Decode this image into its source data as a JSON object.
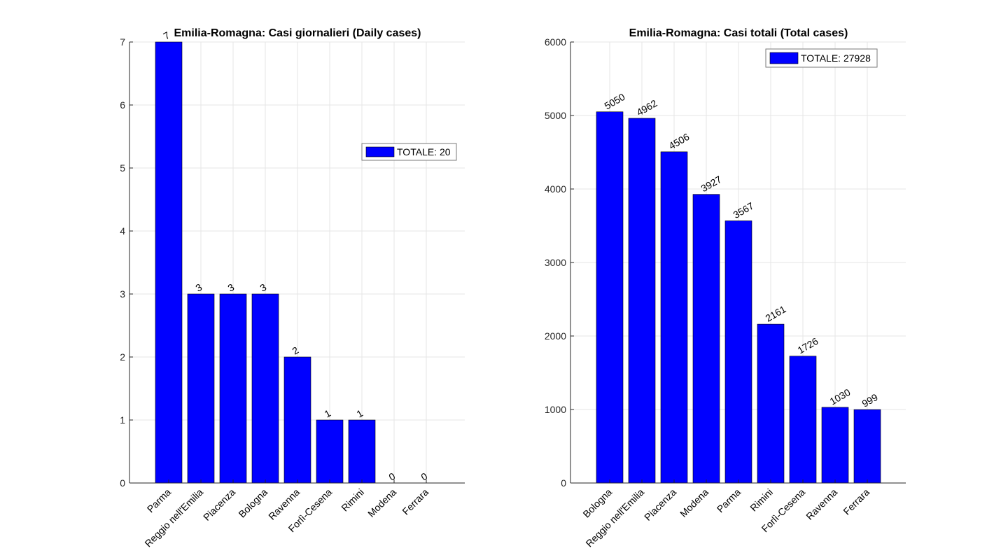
{
  "chart_data": [
    {
      "type": "bar",
      "title": "Emilia-Romagna: Casi giornalieri (Daily cases)",
      "categories": [
        "Parma",
        "Reggio nell'Emilia",
        "Piacenza",
        "Bologna",
        "Ravenna",
        "Forlì-Cesena",
        "Rimini",
        "Modena",
        "Ferrara"
      ],
      "values": [
        7,
        3,
        3,
        3,
        2,
        1,
        1,
        0,
        0
      ],
      "data_labels": [
        "7",
        "3",
        "3",
        "3",
        "2",
        "1",
        "1",
        "0",
        "0"
      ],
      "ylim": [
        0,
        7
      ],
      "yticks": [
        0,
        1,
        2,
        3,
        4,
        5,
        6,
        7
      ],
      "legend": "TOTALE: 20",
      "legend_position": "right",
      "grid": true,
      "bar_color": "#0000ff"
    },
    {
      "type": "bar",
      "title": "Emilia-Romagna: Casi totali (Total cases)",
      "categories": [
        "Bologna",
        "Reggio nell'Emilia",
        "Piacenza",
        "Modena",
        "Parma",
        "Rimini",
        "Forlì-Cesena",
        "Ravenna",
        "Ferrara"
      ],
      "values": [
        5050,
        4962,
        4506,
        3927,
        3567,
        2161,
        1726,
        1030,
        999
      ],
      "data_labels": [
        "5050",
        "4962",
        "4506",
        "3927",
        "3567",
        "2161",
        "1726",
        "1030",
        "999"
      ],
      "ylim": [
        0,
        6000
      ],
      "yticks": [
        0,
        1000,
        2000,
        3000,
        4000,
        5000,
        6000
      ],
      "legend": "TOTALE: 27928",
      "legend_position": "top-right",
      "grid": true,
      "bar_color": "#0000ff"
    }
  ]
}
